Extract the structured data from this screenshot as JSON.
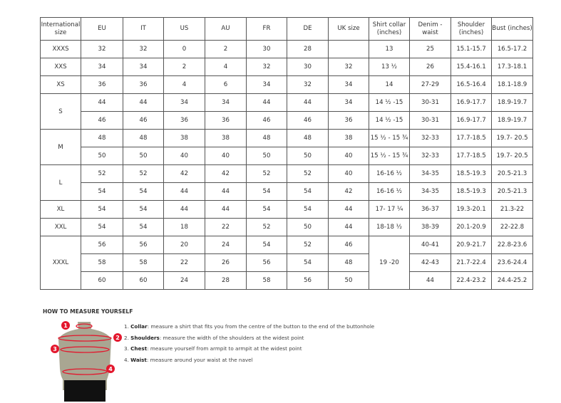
{
  "table": {
    "headers": [
      "International size",
      "EU",
      "IT",
      "US",
      "AU",
      "FR",
      "DE",
      "UK size",
      "Shirt collar (inches)",
      "Denim - waist",
      "Shoulder (inches)",
      "Bust (inches)"
    ],
    "groups": [
      {
        "size": "XXXS",
        "rows": [
          [
            "32",
            "32",
            "0",
            "2",
            "30",
            "28",
            "",
            "13",
            "25",
            "15.1-15.7",
            "16.5-17.2"
          ]
        ]
      },
      {
        "size": "XXS",
        "rows": [
          [
            "34",
            "34",
            "2",
            "4",
            "32",
            "30",
            "32",
            "13 ½",
            "26",
            "15.4-16.1",
            "17.3-18.1"
          ]
        ]
      },
      {
        "size": "XS",
        "rows": [
          [
            "36",
            "36",
            "4",
            "6",
            "34",
            "32",
            "34",
            "14",
            "27-29",
            "16.5-16.4",
            "18.1-18.9"
          ]
        ]
      },
      {
        "size": "S",
        "rows": [
          [
            "44",
            "44",
            "34",
            "34",
            "44",
            "44",
            "34",
            "14 ½ -15",
            "30-31",
            "16.9-17.7",
            "18.9-19.7"
          ],
          [
            "46",
            "46",
            "36",
            "36",
            "46",
            "46",
            "36",
            "14 ½ -15",
            "30-31",
            "16.9-17.7",
            "18.9-19.7"
          ]
        ]
      },
      {
        "size": "M",
        "rows": [
          [
            "48",
            "48",
            "38",
            "38",
            "48",
            "48",
            "38",
            "15 ½ - 15 ¾",
            "32-33",
            "17.7-18.5",
            "19.7- 20.5"
          ],
          [
            "50",
            "50",
            "40",
            "40",
            "50",
            "50",
            "40",
            "15 ½ - 15 ¾",
            "32-33",
            "17.7-18.5",
            "19.7- 20.5"
          ]
        ]
      },
      {
        "size": "L",
        "rows": [
          [
            "52",
            "52",
            "42",
            "42",
            "52",
            "52",
            "40",
            "16-16 ½",
            "34-35",
            "18.5-19.3",
            "20.5-21.3"
          ],
          [
            "54",
            "54",
            "44",
            "44",
            "54",
            "54",
            "42",
            "16-16 ½",
            "34-35",
            "18.5-19.3",
            "20.5-21.3"
          ]
        ]
      },
      {
        "size": "XL",
        "rows": [
          [
            "54",
            "54",
            "44",
            "44",
            "54",
            "54",
            "44",
            "17- 17 ¼",
            "36-37",
            "19.3-20.1",
            "21.3-22"
          ]
        ]
      },
      {
        "size": "XXL",
        "rows": [
          [
            "54",
            "54",
            "18",
            "22",
            "52",
            "50",
            "44",
            "18-18 ½",
            "38-39",
            "20.1-20.9",
            "22-22.8"
          ]
        ]
      },
      {
        "size": "XXXL",
        "rows": [
          [
            "56",
            "56",
            "20",
            "24",
            "54",
            "52",
            "46",
            "19 -20",
            "40-41",
            "20.9-21.7",
            "22.8-23.6"
          ],
          [
            "58",
            "58",
            "22",
            "26",
            "56",
            "54",
            "48",
            null,
            "42-43",
            "21.7-22.4",
            "23.6-24.4"
          ],
          [
            "60",
            "60",
            "24",
            "28",
            "58",
            "56",
            "50",
            null,
            "44",
            "22.4-23.2",
            "24.4-25.2"
          ]
        ]
      }
    ]
  },
  "measure": {
    "title": "HOW TO MEASURE YOURSELF",
    "items": [
      {
        "num": "1.",
        "term": "Collar",
        "text": ": measure a shirt that fits you from the centre of the button to the end of the buttonhole"
      },
      {
        "num": "2.",
        "term": "Shoulders",
        "text": ": measure the width of the shoulders at the widest point"
      },
      {
        "num": "3.",
        "term": "Chest",
        "text": ": measure yourself from armpit to armpit at the widest point"
      },
      {
        "num": "4.",
        "term": "Waist",
        "text": ": measure around your waist at the navel"
      }
    ],
    "markers": [
      "1",
      "2",
      "3",
      "4"
    ],
    "colors": {
      "accent": "#e3172d",
      "body": "#a9a692",
      "shorts": "#111111"
    }
  }
}
